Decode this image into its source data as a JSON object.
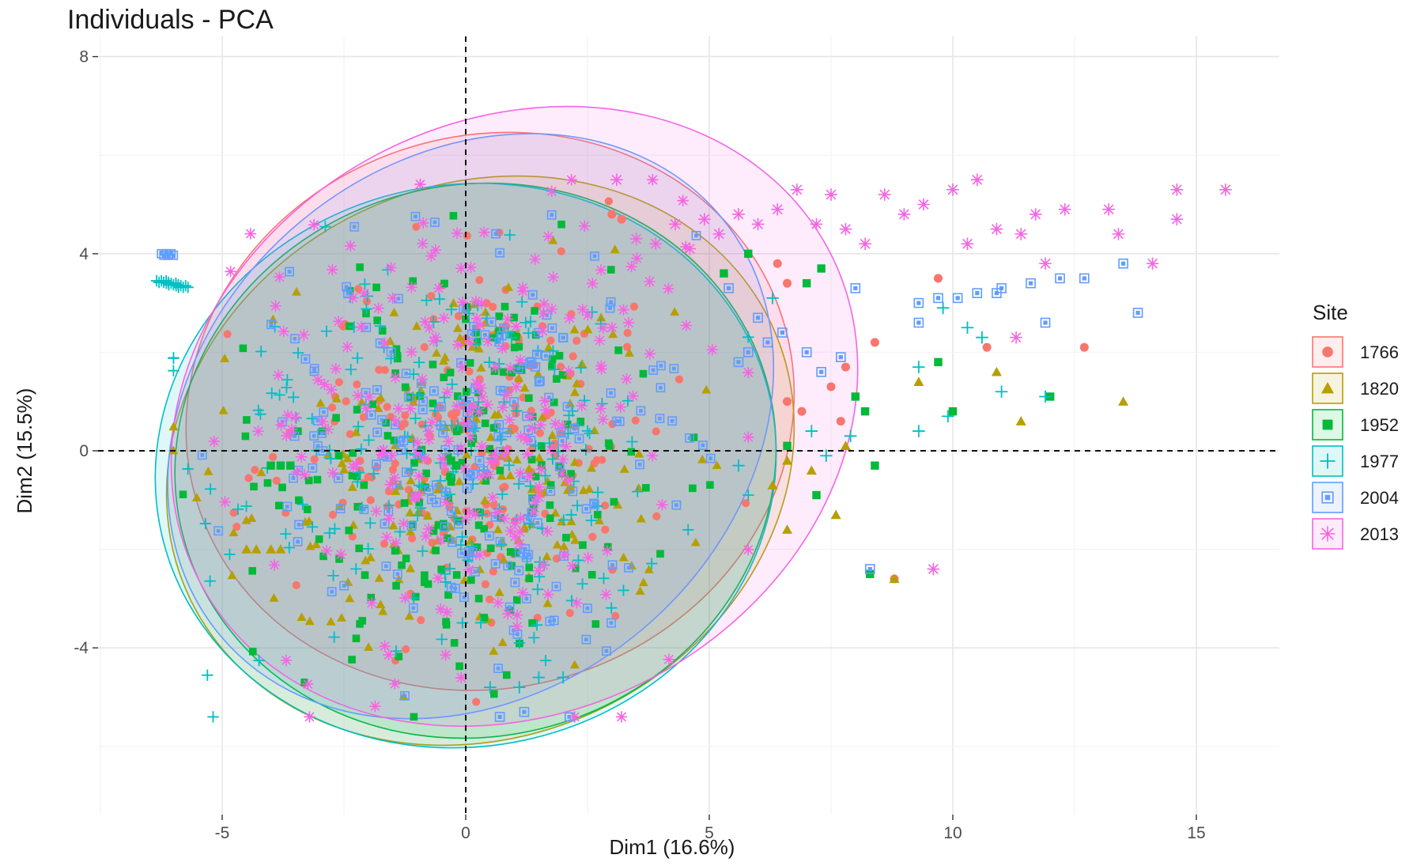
{
  "chart_data": {
    "type": "scatter",
    "title": "Individuals - PCA",
    "xlabel": "Dim1 (16.6%)",
    "ylabel": "Dim2 (15.5%)",
    "xlim": [
      -7.5,
      16.8
    ],
    "ylim": [
      -7.0,
      8.3
    ],
    "xticks": [
      -5,
      0,
      5,
      10,
      15
    ],
    "yticks": [
      -4,
      0,
      4,
      8
    ],
    "xtick_labels": [
      "-5",
      "0",
      "5",
      "10",
      "15"
    ],
    "ytick_labels": [
      "-4",
      "0",
      "4",
      "8"
    ],
    "grid": true,
    "reference_lines": {
      "x": 0,
      "y": 0,
      "style": "dashed"
    },
    "legend": {
      "title": "Site",
      "position": "right"
    },
    "series": [
      {
        "name": "1766",
        "color": "#F8766D",
        "shape": "circle",
        "ellipse": {
          "cx": 0.5,
          "cy": 0.8,
          "rx": 6.3,
          "ry": 5.6,
          "angle": -18
        },
        "cloud": {
          "cx": 0.2,
          "cy": 0.4,
          "sx": 2.0,
          "sy": 2.0,
          "n": 200
        },
        "points": [
          [
            9.7,
            3.5
          ],
          [
            10.7,
            2.1
          ],
          [
            12.7,
            2.1
          ],
          [
            8.4,
            2.2
          ],
          [
            7.8,
            1.7
          ],
          [
            6.6,
            1.0
          ],
          [
            6.9,
            0.8
          ],
          [
            7.5,
            1.3
          ],
          [
            7.7,
            0.6
          ],
          [
            8.8,
            -2.6
          ],
          [
            3.0,
            4.8
          ],
          [
            3.2,
            4.7
          ],
          [
            6.4,
            3.8
          ],
          [
            6.6,
            3.4
          ]
        ]
      },
      {
        "name": "1820",
        "color": "#B79F00",
        "shape": "triangle",
        "ellipse": {
          "cx": 0.3,
          "cy": -0.2,
          "rx": 6.6,
          "ry": 5.6,
          "angle": -25
        },
        "cloud": {
          "cx": 0.0,
          "cy": -0.5,
          "sx": 2.1,
          "sy": 2.1,
          "n": 200
        },
        "points": [
          [
            13.5,
            1.0
          ],
          [
            11.4,
            0.6
          ],
          [
            10.9,
            1.6
          ],
          [
            9.3,
            1.4
          ],
          [
            7.8,
            0.1
          ],
          [
            7.6,
            -1.3
          ],
          [
            6.6,
            -1.6
          ],
          [
            6.3,
            -0.7
          ],
          [
            6.6,
            -0.2
          ],
          [
            7.1,
            -0.4
          ],
          [
            8.8,
            -2.6
          ],
          [
            -4.5,
            -2.0
          ],
          [
            -4.3,
            -2.0
          ],
          [
            -4.0,
            -2.0
          ],
          [
            -3.8,
            -2.0
          ]
        ]
      },
      {
        "name": "1952",
        "color": "#00BA38",
        "shape": "square",
        "ellipse": {
          "cx": 0.2,
          "cy": -0.2,
          "rx": 6.2,
          "ry": 5.6,
          "angle": -14
        },
        "cloud": {
          "cx": 0.0,
          "cy": -0.3,
          "sx": 2.1,
          "sy": 2.0,
          "n": 200
        },
        "points": [
          [
            12.0,
            1.1
          ],
          [
            10.0,
            0.8
          ],
          [
            9.7,
            1.8
          ],
          [
            8.4,
            -0.3
          ],
          [
            8.2,
            0.8
          ],
          [
            8.0,
            1.1
          ],
          [
            7.2,
            -0.9
          ],
          [
            6.6,
            0.1
          ],
          [
            8.3,
            -2.5
          ],
          [
            7.3,
            3.7
          ],
          [
            7.0,
            3.4
          ],
          [
            5.8,
            4.0
          ],
          [
            5.3,
            3.6
          ],
          [
            -3.6,
            -0.3
          ],
          [
            -3.8,
            -0.3
          ],
          [
            -4.0,
            -0.3
          ],
          [
            -0.3,
            -0.2
          ],
          [
            -0.2,
            -0.3
          ]
        ]
      },
      {
        "name": "1977",
        "color": "#00BFC4",
        "shape": "plus",
        "ellipse": {
          "cx": 0.0,
          "cy": -0.3,
          "rx": 6.4,
          "ry": 5.7,
          "angle": -12
        },
        "cloud": {
          "cx": -0.5,
          "cy": -0.5,
          "sx": 2.3,
          "sy": 2.1,
          "n": 200
        },
        "points": [
          [
            11.9,
            1.1
          ],
          [
            11.0,
            1.2
          ],
          [
            10.3,
            2.5
          ],
          [
            10.6,
            2.3
          ],
          [
            9.8,
            2.9
          ],
          [
            9.9,
            0.7
          ],
          [
            9.3,
            0.4
          ],
          [
            9.3,
            1.7
          ],
          [
            7.9,
            0.3
          ],
          [
            7.4,
            -0.1
          ],
          [
            7.1,
            0.4
          ],
          [
            6.3,
            3.1
          ],
          [
            5.6,
            -0.3
          ],
          [
            0.5,
            -4.8
          ],
          [
            1.1,
            -4.8
          ],
          [
            1.5,
            -4.6
          ],
          [
            2.0,
            -4.6
          ]
        ]
      },
      {
        "name": "2004",
        "color": "#619CFF",
        "shape": "boxx",
        "ellipse": {
          "cx": 0.1,
          "cy": 0.5,
          "rx": 6.7,
          "ry": 5.4,
          "angle": -40
        },
        "cloud": {
          "cx": 0.2,
          "cy": 0.2,
          "sx": 2.1,
          "sy": 2.1,
          "n": 200
        },
        "points": [
          [
            13.5,
            3.8
          ],
          [
            13.8,
            2.8
          ],
          [
            12.7,
            3.5
          ],
          [
            12.2,
            3.5
          ],
          [
            11.9,
            2.6
          ],
          [
            11.6,
            3.4
          ],
          [
            11.0,
            3.3
          ],
          [
            10.9,
            3.2
          ],
          [
            10.5,
            3.2
          ],
          [
            10.1,
            3.1
          ],
          [
            9.7,
            3.1
          ],
          [
            9.3,
            3.0
          ],
          [
            9.3,
            2.6
          ],
          [
            8.3,
            -2.4
          ],
          [
            8.0,
            3.3
          ],
          [
            7.7,
            1.9
          ],
          [
            7.3,
            1.6
          ],
          [
            7.0,
            2.0
          ],
          [
            6.5,
            2.4
          ],
          [
            6.2,
            2.2
          ],
          [
            6.0,
            2.7
          ],
          [
            5.8,
            2.0
          ],
          [
            5.6,
            1.8
          ],
          [
            5.4,
            3.3
          ],
          [
            1.2,
            -5.3
          ],
          [
            0.7,
            -5.4
          ]
        ]
      },
      {
        "name": "2013",
        "color": "#F564E3",
        "shape": "asterisk",
        "ellipse": {
          "cx": 1.0,
          "cy": 0.7,
          "rx": 7.3,
          "ry": 6.0,
          "angle": -28
        },
        "cloud": {
          "cx": 0.2,
          "cy": 0.6,
          "sx": 2.2,
          "sy": 2.3,
          "n": 250
        },
        "points": [
          [
            15.6,
            5.3
          ],
          [
            14.6,
            5.3
          ],
          [
            14.6,
            4.7
          ],
          [
            14.1,
            3.8
          ],
          [
            13.4,
            4.4
          ],
          [
            13.2,
            4.9
          ],
          [
            12.3,
            4.9
          ],
          [
            11.9,
            3.8
          ],
          [
            11.7,
            4.8
          ],
          [
            11.4,
            4.4
          ],
          [
            11.3,
            2.3
          ],
          [
            10.9,
            4.5
          ],
          [
            10.5,
            5.5
          ],
          [
            10.3,
            4.2
          ],
          [
            10.0,
            5.3
          ],
          [
            9.6,
            -2.4
          ],
          [
            9.4,
            5.0
          ],
          [
            9.0,
            4.8
          ],
          [
            8.6,
            5.2
          ],
          [
            8.2,
            4.2
          ],
          [
            7.8,
            4.5
          ],
          [
            7.5,
            5.2
          ],
          [
            7.2,
            4.6
          ],
          [
            6.8,
            5.3
          ],
          [
            6.4,
            4.9
          ],
          [
            6.0,
            4.6
          ],
          [
            5.6,
            4.8
          ],
          [
            5.2,
            4.4
          ],
          [
            4.9,
            4.7
          ],
          [
            4.6,
            4.1
          ],
          [
            4.3,
            4.6
          ],
          [
            3.9,
            4.2
          ],
          [
            3.5,
            4.3
          ],
          [
            3.1,
            5.5
          ]
        ]
      }
    ],
    "clusters": [
      {
        "series": "2004",
        "x": -6.1,
        "y": 4.0
      },
      {
        "series": "1977",
        "x": -6.2,
        "y": 3.45
      },
      {
        "series": "1977",
        "x": -6.0,
        "y": 3.4
      },
      {
        "series": "1977",
        "x": -5.8,
        "y": 3.35
      }
    ]
  }
}
